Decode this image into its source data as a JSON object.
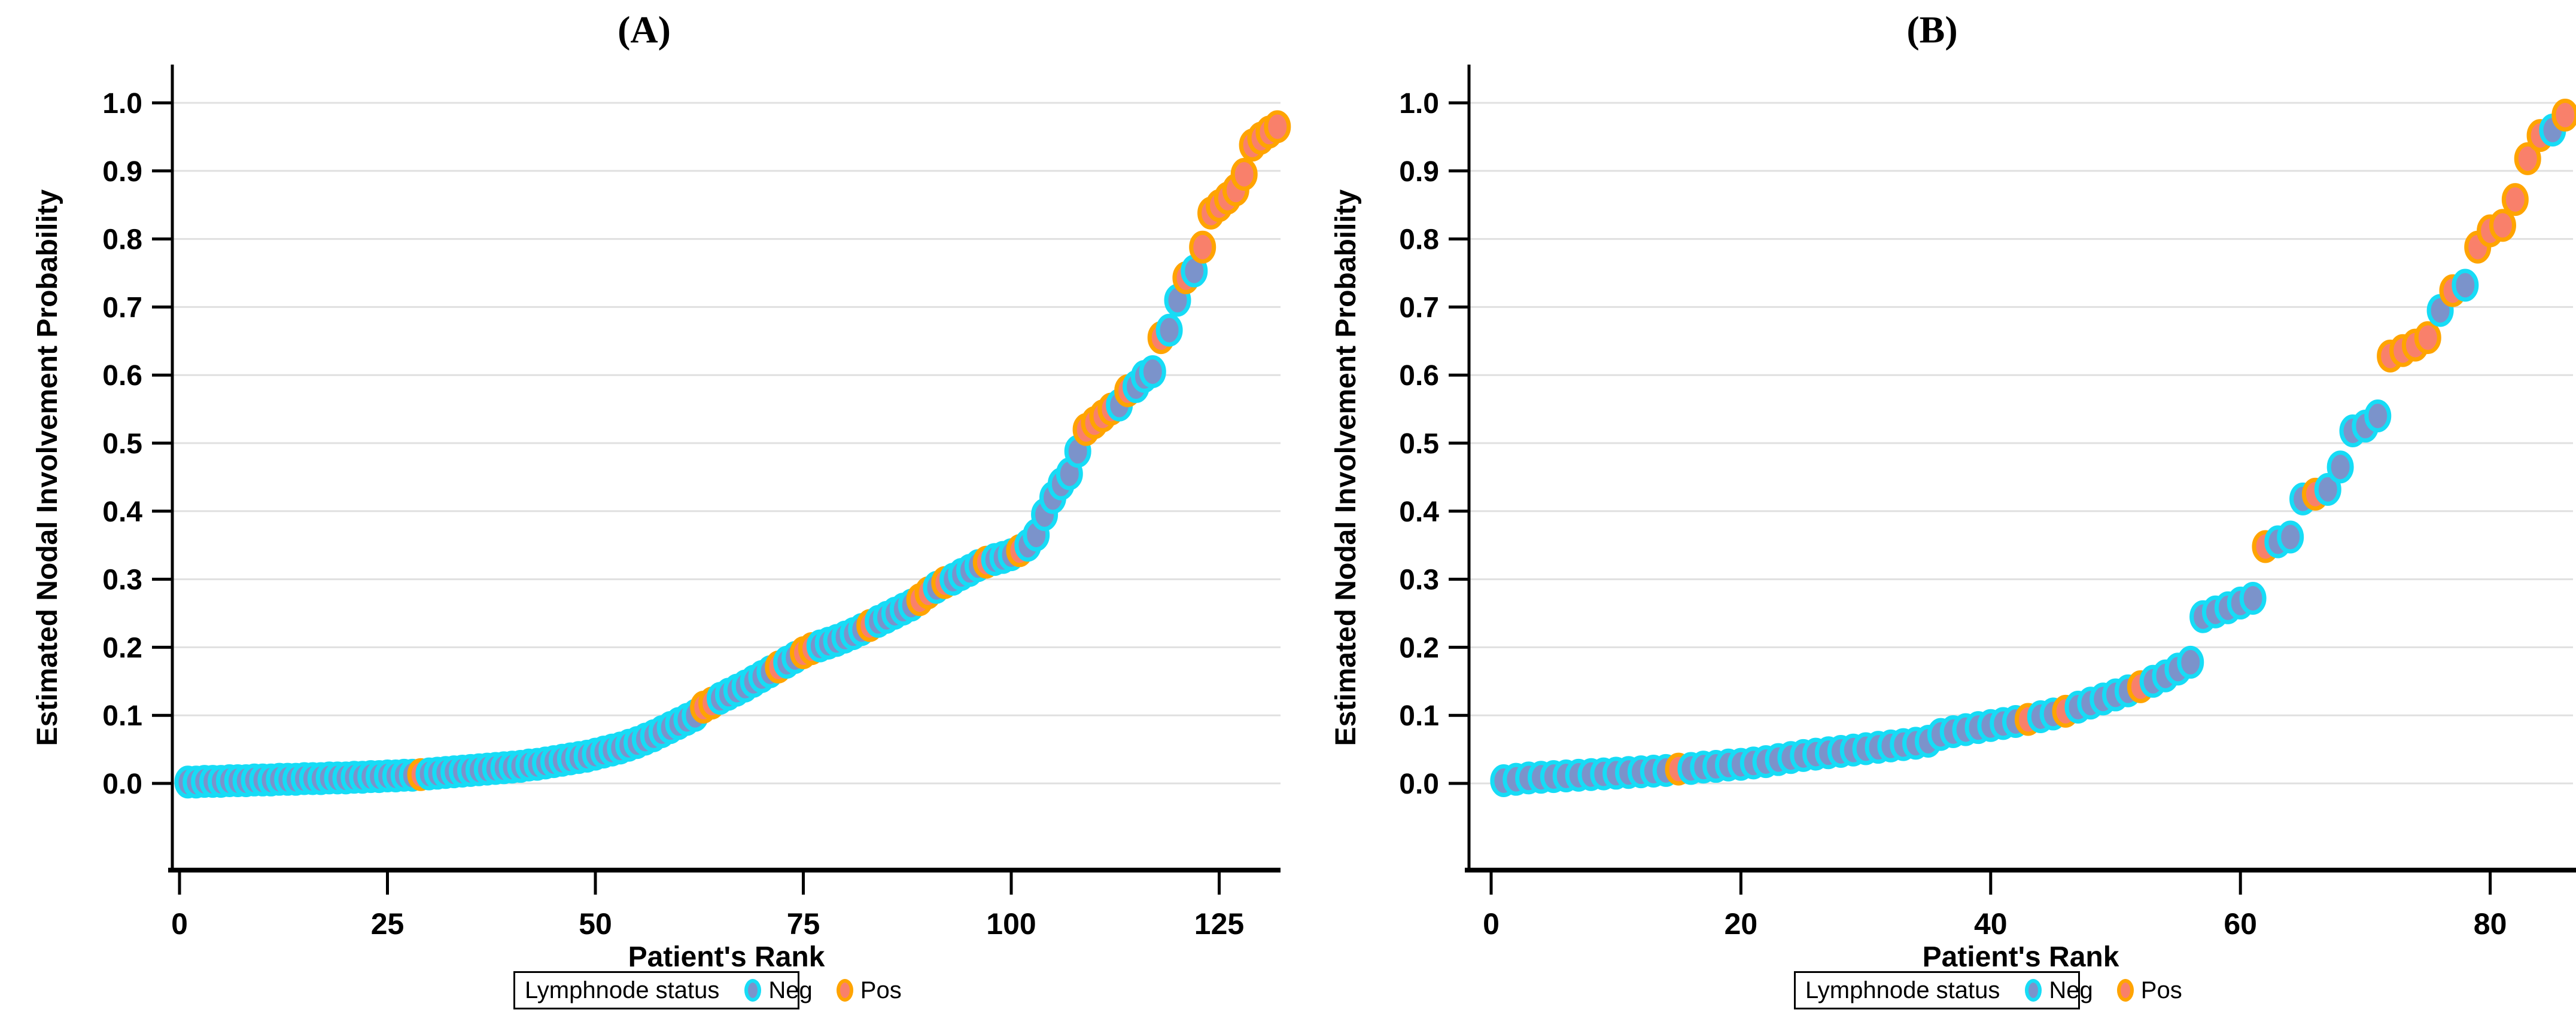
{
  "colors": {
    "neg_fill": "#7B93CB",
    "neg_edge": "#16DCF6",
    "pos_fill": "#F9806B",
    "pos_edge": "#FFA400",
    "grid": "#E0E0E0",
    "axis": "#000000",
    "background": "#FFFFFF"
  },
  "chart_data": [
    {
      "type": "scatter",
      "panel": "A",
      "title": "(A)",
      "xlabel": "Patient's Rank",
      "ylabel": "Estimated Nodal Involvement Probability",
      "xticks": [
        0,
        25,
        50,
        75,
        100,
        125
      ],
      "ytick_labels": [
        "1.0",
        "0.9",
        "0.8",
        "0.7",
        "0.6",
        "0.5",
        "0.4",
        "0.3",
        "0.2",
        "0.1",
        "0.0"
      ],
      "xlim": [
        0,
        133
      ],
      "ylim": [
        0.0,
        1.0
      ],
      "grid": "horizontal",
      "n_points": 132,
      "legend": {
        "title": "Lymphnode status",
        "position": "bottom",
        "entries": [
          {
            "label": "Neg",
            "fill": "#7B93CB",
            "edge": "#16DCF6"
          },
          {
            "label": "Pos",
            "fill": "#F9806B",
            "edge": "#FFA400"
          }
        ]
      },
      "points": [
        [
          1,
          0.002,
          "Neg"
        ],
        [
          2,
          0.002,
          "Neg"
        ],
        [
          3,
          0.003,
          "Neg"
        ],
        [
          4,
          0.003,
          "Neg"
        ],
        [
          5,
          0.003,
          "Neg"
        ],
        [
          6,
          0.004,
          "Neg"
        ],
        [
          7,
          0.004,
          "Neg"
        ],
        [
          8,
          0.004,
          "Neg"
        ],
        [
          9,
          0.005,
          "Neg"
        ],
        [
          10,
          0.005,
          "Neg"
        ],
        [
          11,
          0.005,
          "Neg"
        ],
        [
          12,
          0.006,
          "Neg"
        ],
        [
          13,
          0.006,
          "Neg"
        ],
        [
          14,
          0.006,
          "Neg"
        ],
        [
          15,
          0.007,
          "Neg"
        ],
        [
          16,
          0.007,
          "Neg"
        ],
        [
          17,
          0.007,
          "Neg"
        ],
        [
          18,
          0.008,
          "Neg"
        ],
        [
          19,
          0.008,
          "Neg"
        ],
        [
          20,
          0.008,
          "Neg"
        ],
        [
          21,
          0.009,
          "Neg"
        ],
        [
          22,
          0.009,
          "Neg"
        ],
        [
          23,
          0.01,
          "Neg"
        ],
        [
          24,
          0.01,
          "Neg"
        ],
        [
          25,
          0.011,
          "Neg"
        ],
        [
          26,
          0.011,
          "Neg"
        ],
        [
          27,
          0.012,
          "Neg"
        ],
        [
          28,
          0.012,
          "Neg"
        ],
        [
          29,
          0.013,
          "Pos"
        ],
        [
          30,
          0.014,
          "Neg"
        ],
        [
          31,
          0.015,
          "Neg"
        ],
        [
          32,
          0.016,
          "Neg"
        ],
        [
          33,
          0.017,
          "Neg"
        ],
        [
          34,
          0.018,
          "Neg"
        ],
        [
          35,
          0.019,
          "Neg"
        ],
        [
          36,
          0.02,
          "Neg"
        ],
        [
          37,
          0.021,
          "Neg"
        ],
        [
          38,
          0.022,
          "Neg"
        ],
        [
          39,
          0.023,
          "Neg"
        ],
        [
          40,
          0.024,
          "Neg"
        ],
        [
          41,
          0.025,
          "Neg"
        ],
        [
          42,
          0.027,
          "Neg"
        ],
        [
          43,
          0.028,
          "Neg"
        ],
        [
          44,
          0.03,
          "Neg"
        ],
        [
          45,
          0.032,
          "Neg"
        ],
        [
          46,
          0.034,
          "Neg"
        ],
        [
          47,
          0.036,
          "Neg"
        ],
        [
          48,
          0.038,
          "Neg"
        ],
        [
          49,
          0.04,
          "Neg"
        ],
        [
          50,
          0.043,
          "Neg"
        ],
        [
          51,
          0.046,
          "Neg"
        ],
        [
          52,
          0.049,
          "Neg"
        ],
        [
          53,
          0.052,
          "Neg"
        ],
        [
          54,
          0.056,
          "Neg"
        ],
        [
          55,
          0.06,
          "Neg"
        ],
        [
          56,
          0.065,
          "Neg"
        ],
        [
          57,
          0.07,
          "Neg"
        ],
        [
          58,
          0.076,
          "Neg"
        ],
        [
          59,
          0.082,
          "Neg"
        ],
        [
          60,
          0.088,
          "Neg"
        ],
        [
          61,
          0.094,
          "Neg"
        ],
        [
          62,
          0.1,
          "Neg"
        ],
        [
          63,
          0.112,
          "Pos"
        ],
        [
          64,
          0.118,
          "Pos"
        ],
        [
          65,
          0.125,
          "Neg"
        ],
        [
          66,
          0.131,
          "Neg"
        ],
        [
          67,
          0.137,
          "Neg"
        ],
        [
          68,
          0.143,
          "Neg"
        ],
        [
          69,
          0.15,
          "Neg"
        ],
        [
          70,
          0.157,
          "Neg"
        ],
        [
          71,
          0.164,
          "Neg"
        ],
        [
          72,
          0.171,
          "Pos"
        ],
        [
          73,
          0.178,
          "Neg"
        ],
        [
          74,
          0.185,
          "Neg"
        ],
        [
          75,
          0.192,
          "Pos"
        ],
        [
          76,
          0.198,
          "Pos"
        ],
        [
          77,
          0.202,
          "Neg"
        ],
        [
          78,
          0.206,
          "Neg"
        ],
        [
          79,
          0.21,
          "Neg"
        ],
        [
          80,
          0.215,
          "Neg"
        ],
        [
          81,
          0.22,
          "Neg"
        ],
        [
          82,
          0.226,
          "Neg"
        ],
        [
          83,
          0.232,
          "Pos"
        ],
        [
          84,
          0.238,
          "Neg"
        ],
        [
          85,
          0.244,
          "Neg"
        ],
        [
          86,
          0.25,
          "Neg"
        ],
        [
          87,
          0.256,
          "Neg"
        ],
        [
          88,
          0.262,
          "Neg"
        ],
        [
          89,
          0.27,
          "Pos"
        ],
        [
          90,
          0.28,
          "Pos"
        ],
        [
          91,
          0.288,
          "Neg"
        ],
        [
          92,
          0.295,
          "Pos"
        ],
        [
          93,
          0.3,
          "Neg"
        ],
        [
          94,
          0.307,
          "Neg"
        ],
        [
          95,
          0.313,
          "Neg"
        ],
        [
          96,
          0.32,
          "Neg"
        ],
        [
          97,
          0.325,
          "Pos"
        ],
        [
          98,
          0.329,
          "Neg"
        ],
        [
          99,
          0.332,
          "Neg"
        ],
        [
          100,
          0.336,
          "Neg"
        ],
        [
          101,
          0.342,
          "Pos"
        ],
        [
          102,
          0.35,
          "Neg"
        ],
        [
          103,
          0.365,
          "Neg"
        ],
        [
          104,
          0.395,
          "Neg"
        ],
        [
          105,
          0.42,
          "Neg"
        ],
        [
          106,
          0.44,
          "Neg"
        ],
        [
          107,
          0.455,
          "Neg"
        ],
        [
          108,
          0.488,
          "Neg"
        ],
        [
          109,
          0.52,
          "Pos"
        ],
        [
          110,
          0.53,
          "Pos"
        ],
        [
          111,
          0.54,
          "Pos"
        ],
        [
          112,
          0.55,
          "Pos"
        ],
        [
          113,
          0.556,
          "Neg"
        ],
        [
          114,
          0.577,
          "Pos"
        ],
        [
          115,
          0.583,
          "Neg"
        ],
        [
          116,
          0.598,
          "Neg"
        ],
        [
          117,
          0.605,
          "Neg"
        ],
        [
          118,
          0.655,
          "Pos"
        ],
        [
          119,
          0.666,
          "Neg"
        ],
        [
          120,
          0.71,
          "Neg"
        ],
        [
          121,
          0.743,
          "Pos"
        ],
        [
          122,
          0.753,
          "Neg"
        ],
        [
          123,
          0.788,
          "Pos"
        ],
        [
          124,
          0.838,
          "Pos"
        ],
        [
          125,
          0.849,
          "Pos"
        ],
        [
          126,
          0.86,
          "Pos"
        ],
        [
          127,
          0.872,
          "Pos"
        ],
        [
          128,
          0.895,
          "Pos"
        ],
        [
          129,
          0.938,
          "Pos"
        ],
        [
          130,
          0.948,
          "Pos"
        ],
        [
          131,
          0.957,
          "Pos"
        ],
        [
          132,
          0.965,
          "Pos"
        ]
      ]
    },
    {
      "type": "scatter",
      "panel": "B",
      "title": "(B)",
      "xlabel": "Patient's Rank",
      "ylabel": "Estimated Nodal Involvement Probability",
      "xticks": [
        0,
        20,
        40,
        60,
        80
      ],
      "ytick_labels": [
        "1.0",
        "0.9",
        "0.8",
        "0.7",
        "0.6",
        "0.5",
        "0.4",
        "0.3",
        "0.2",
        "0.1",
        "0.0"
      ],
      "xlim": [
        0,
        87
      ],
      "ylim": [
        0.0,
        1.0
      ],
      "grid": "horizontal",
      "n_points": 86,
      "legend": {
        "title": "Lymphnode status",
        "position": "bottom",
        "entries": [
          {
            "label": "Neg",
            "fill": "#7B93CB",
            "edge": "#16DCF6"
          },
          {
            "label": "Pos",
            "fill": "#F9806B",
            "edge": "#FFA400"
          }
        ]
      },
      "points": [
        [
          1,
          0.004,
          "Neg"
        ],
        [
          2,
          0.006,
          "Neg"
        ],
        [
          3,
          0.008,
          "Neg"
        ],
        [
          4,
          0.009,
          "Neg"
        ],
        [
          5,
          0.01,
          "Neg"
        ],
        [
          6,
          0.011,
          "Neg"
        ],
        [
          7,
          0.012,
          "Neg"
        ],
        [
          8,
          0.013,
          "Neg"
        ],
        [
          9,
          0.014,
          "Neg"
        ],
        [
          10,
          0.015,
          "Neg"
        ],
        [
          11,
          0.016,
          "Neg"
        ],
        [
          12,
          0.017,
          "Neg"
        ],
        [
          13,
          0.018,
          "Neg"
        ],
        [
          14,
          0.019,
          "Neg"
        ],
        [
          15,
          0.021,
          "Pos"
        ],
        [
          16,
          0.022,
          "Neg"
        ],
        [
          17,
          0.024,
          "Neg"
        ],
        [
          18,
          0.025,
          "Neg"
        ],
        [
          19,
          0.027,
          "Neg"
        ],
        [
          20,
          0.028,
          "Neg"
        ],
        [
          21,
          0.03,
          "Neg"
        ],
        [
          22,
          0.032,
          "Neg"
        ],
        [
          23,
          0.035,
          "Neg"
        ],
        [
          24,
          0.038,
          "Neg"
        ],
        [
          25,
          0.041,
          "Neg"
        ],
        [
          26,
          0.043,
          "Neg"
        ],
        [
          27,
          0.045,
          "Neg"
        ],
        [
          28,
          0.047,
          "Neg"
        ],
        [
          29,
          0.049,
          "Neg"
        ],
        [
          30,
          0.051,
          "Neg"
        ],
        [
          31,
          0.053,
          "Neg"
        ],
        [
          32,
          0.055,
          "Neg"
        ],
        [
          33,
          0.057,
          "Neg"
        ],
        [
          34,
          0.059,
          "Neg"
        ],
        [
          35,
          0.062,
          "Neg"
        ],
        [
          36,
          0.072,
          "Neg"
        ],
        [
          37,
          0.076,
          "Neg"
        ],
        [
          38,
          0.079,
          "Neg"
        ],
        [
          39,
          0.082,
          "Neg"
        ],
        [
          40,
          0.085,
          "Neg"
        ],
        [
          41,
          0.088,
          "Neg"
        ],
        [
          42,
          0.091,
          "Neg"
        ],
        [
          43,
          0.094,
          "Pos"
        ],
        [
          44,
          0.098,
          "Neg"
        ],
        [
          45,
          0.102,
          "Neg"
        ],
        [
          46,
          0.106,
          "Pos"
        ],
        [
          47,
          0.112,
          "Neg"
        ],
        [
          48,
          0.118,
          "Neg"
        ],
        [
          49,
          0.124,
          "Neg"
        ],
        [
          50,
          0.13,
          "Neg"
        ],
        [
          51,
          0.136,
          "Neg"
        ],
        [
          52,
          0.142,
          "Pos"
        ],
        [
          53,
          0.15,
          "Neg"
        ],
        [
          54,
          0.158,
          "Neg"
        ],
        [
          55,
          0.168,
          "Neg"
        ],
        [
          56,
          0.178,
          "Neg"
        ],
        [
          57,
          0.245,
          "Neg"
        ],
        [
          58,
          0.252,
          "Neg"
        ],
        [
          59,
          0.258,
          "Neg"
        ],
        [
          60,
          0.265,
          "Neg"
        ],
        [
          61,
          0.272,
          "Neg"
        ],
        [
          62,
          0.348,
          "Pos"
        ],
        [
          63,
          0.355,
          "Neg"
        ],
        [
          64,
          0.362,
          "Neg"
        ],
        [
          65,
          0.418,
          "Neg"
        ],
        [
          66,
          0.425,
          "Pos"
        ],
        [
          67,
          0.432,
          "Neg"
        ],
        [
          68,
          0.465,
          "Neg"
        ],
        [
          69,
          0.518,
          "Neg"
        ],
        [
          70,
          0.525,
          "Neg"
        ],
        [
          71,
          0.54,
          "Neg"
        ],
        [
          72,
          0.628,
          "Pos"
        ],
        [
          73,
          0.636,
          "Pos"
        ],
        [
          74,
          0.644,
          "Pos"
        ],
        [
          75,
          0.655,
          "Pos"
        ],
        [
          76,
          0.695,
          "Neg"
        ],
        [
          77,
          0.724,
          "Pos"
        ],
        [
          78,
          0.732,
          "Neg"
        ],
        [
          79,
          0.788,
          "Pos"
        ],
        [
          80,
          0.812,
          "Pos"
        ],
        [
          81,
          0.82,
          "Pos"
        ],
        [
          82,
          0.858,
          "Pos"
        ],
        [
          83,
          0.918,
          "Pos"
        ],
        [
          84,
          0.952,
          "Pos"
        ],
        [
          85,
          0.96,
          "Neg"
        ],
        [
          86,
          0.982,
          "Pos"
        ]
      ]
    }
  ]
}
